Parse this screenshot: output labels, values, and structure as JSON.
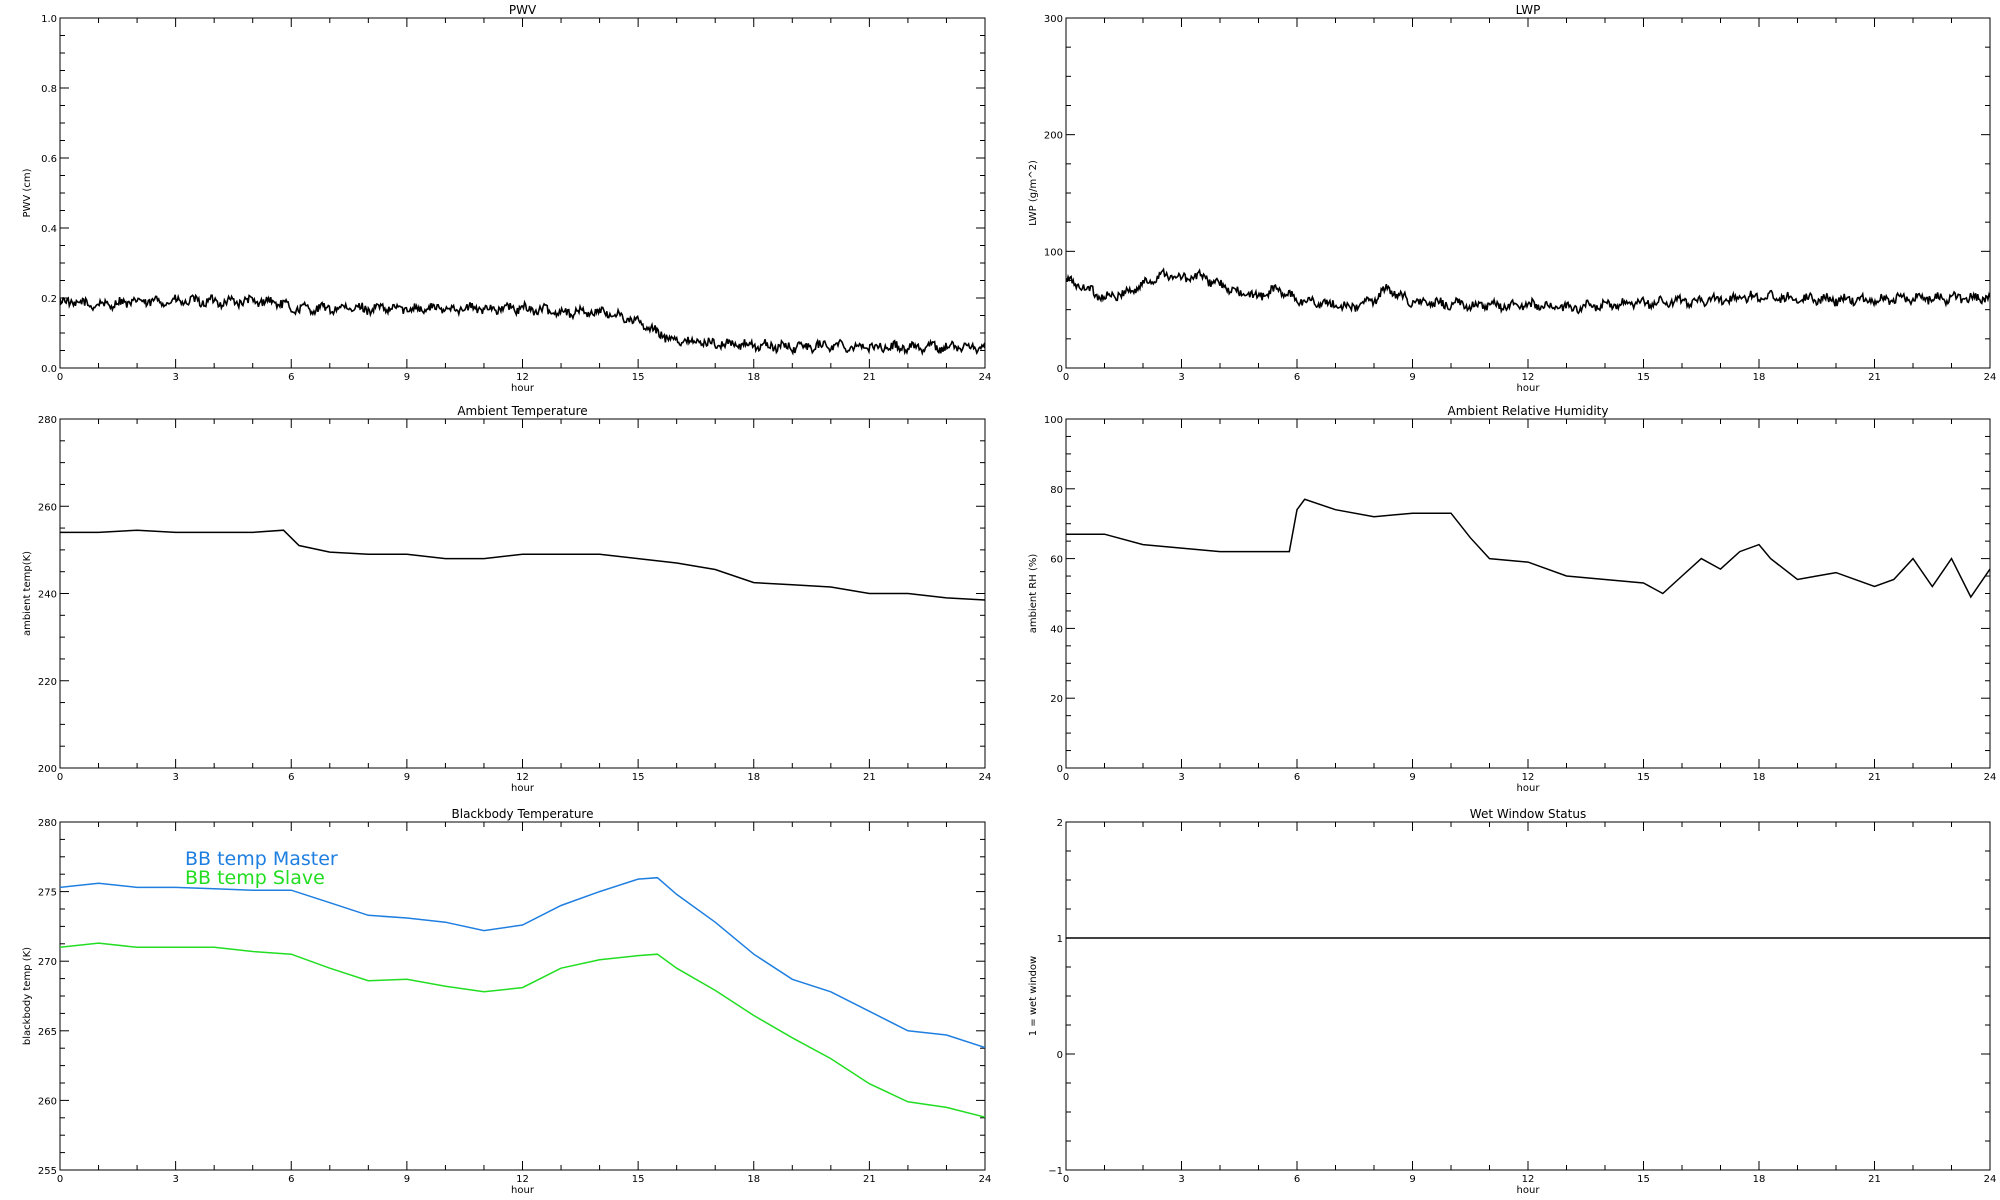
{
  "chart_data": [
    {
      "type": "line",
      "title": "PWV",
      "xlabel": "hour",
      "ylabel": "PWV (cm)",
      "xlim": [
        0,
        24
      ],
      "ylim": [
        0.0,
        1.0
      ],
      "xticks": [
        "0",
        "3",
        "6",
        "9",
        "12",
        "15",
        "18",
        "21",
        "24"
      ],
      "yticks": [
        "0.0",
        "0.2",
        "0.4",
        "0.6",
        "0.8",
        "1.0"
      ],
      "noisy": true,
      "series": [
        {
          "color": "#000000",
          "x": [
            0,
            1,
            2,
            3,
            4,
            5,
            5.6,
            6,
            7,
            8,
            9,
            10,
            11,
            12,
            13,
            14,
            14.5,
            15,
            15.5,
            16,
            17,
            18,
            19,
            20,
            21,
            22,
            23,
            24
          ],
          "y": [
            0.19,
            0.18,
            0.19,
            0.19,
            0.19,
            0.19,
            0.19,
            0.17,
            0.17,
            0.17,
            0.17,
            0.17,
            0.17,
            0.17,
            0.16,
            0.16,
            0.15,
            0.13,
            0.1,
            0.08,
            0.07,
            0.065,
            0.06,
            0.065,
            0.06,
            0.06,
            0.06,
            0.06
          ]
        }
      ]
    },
    {
      "type": "line",
      "title": "LWP",
      "xlabel": "hour",
      "ylabel": "LWP (g/m^2)",
      "xlim": [
        0,
        24
      ],
      "ylim": [
        -50,
        350
      ],
      "xticks": [
        "0",
        "3",
        "6",
        "9",
        "12",
        "15",
        "18",
        "21",
        "24"
      ],
      "yticks": [
        "0",
        "100",
        "200",
        "300"
      ],
      "noisy": true,
      "series": [
        {
          "color": "#000000",
          "x": [
            0,
            0.3,
            0.6,
            1,
            1.5,
            2,
            2.5,
            3,
            3.5,
            4,
            4.5,
            5,
            5.5,
            6,
            7,
            7.5,
            8,
            8.3,
            8.6,
            9,
            10,
            11,
            12,
            13,
            14,
            15,
            16,
            17,
            18,
            19,
            20,
            21,
            22,
            23,
            24
          ],
          "y": [
            50,
            45,
            40,
            30,
            35,
            45,
            58,
            52,
            55,
            45,
            35,
            32,
            40,
            28,
            22,
            20,
            28,
            40,
            35,
            25,
            23,
            21,
            22,
            19,
            21,
            24,
            26,
            28,
            32,
            30,
            28,
            28,
            30,
            30,
            30
          ]
        }
      ]
    },
    {
      "type": "line",
      "title": "Ambient Temperature",
      "xlabel": "hour",
      "ylabel": "ambient temp(K)",
      "xlim": [
        0,
        24
      ],
      "ylim": [
        200,
        280
      ],
      "xticks": [
        "0",
        "3",
        "6",
        "9",
        "12",
        "15",
        "18",
        "21",
        "24"
      ],
      "yticks": [
        "200",
        "220",
        "240",
        "260",
        "280"
      ],
      "noisy": false,
      "series": [
        {
          "color": "#000000",
          "x": [
            0,
            1,
            2,
            3,
            4,
            5,
            5.8,
            6.2,
            7,
            8,
            9,
            10,
            11,
            12,
            13,
            14,
            15,
            16,
            17,
            18,
            19,
            20,
            21,
            22,
            23,
            24
          ],
          "y": [
            254,
            254,
            254.5,
            254,
            254,
            254,
            254.5,
            251,
            249.5,
            249,
            249,
            248,
            248,
            249,
            249,
            249,
            248,
            247,
            245.5,
            242.5,
            242,
            241.5,
            240,
            240,
            239,
            238.5
          ]
        }
      ]
    },
    {
      "type": "line",
      "title": "Ambient Relative Humidity",
      "xlabel": "hour",
      "ylabel": "ambient RH (%)",
      "xlim": [
        0,
        24
      ],
      "ylim": [
        0,
        100
      ],
      "xticks": [
        "0",
        "3",
        "6",
        "9",
        "12",
        "15",
        "18",
        "21",
        "24"
      ],
      "yticks": [
        "0",
        "20",
        "40",
        "60",
        "80",
        "100"
      ],
      "noisy": false,
      "series": [
        {
          "color": "#000000",
          "x": [
            0,
            1,
            2,
            3,
            4,
            5,
            5.8,
            6,
            6.2,
            7,
            8,
            9,
            10,
            10.5,
            11,
            12,
            13,
            14,
            15,
            15.5,
            16,
            16.5,
            17,
            17.5,
            18,
            18.3,
            19,
            19.5,
            20,
            21,
            21.5,
            22,
            22.5,
            23,
            23.5,
            24
          ],
          "y": [
            67,
            67,
            64,
            63,
            62,
            62,
            62,
            74,
            77,
            74,
            72,
            73,
            73,
            66,
            60,
            59,
            55,
            54,
            53,
            50,
            55,
            60,
            57,
            62,
            64,
            60,
            54,
            55,
            56,
            52,
            54,
            60,
            52,
            60,
            49,
            57
          ]
        }
      ]
    },
    {
      "type": "line",
      "title": "Blackbody Temperature",
      "xlabel": "hour",
      "ylabel": "blackbody temp (K)",
      "xlim": [
        0,
        24
      ],
      "ylim": [
        255,
        280
      ],
      "xticks": [
        "0",
        "3",
        "6",
        "9",
        "12",
        "15",
        "18",
        "21",
        "24"
      ],
      "yticks": [
        "255",
        "260",
        "265",
        "270",
        "275",
        "280"
      ],
      "noisy": false,
      "legend": "top-left",
      "series": [
        {
          "name": "BB temp Master",
          "color": "#1f7fe0",
          "x": [
            0,
            1,
            2,
            3,
            4,
            5,
            6,
            7,
            8,
            9,
            10,
            11,
            12,
            13,
            14,
            15,
            15.5,
            16,
            17,
            18,
            19,
            20,
            21,
            22,
            23,
            24
          ],
          "y": [
            275.3,
            275.6,
            275.3,
            275.3,
            275.2,
            275.1,
            275.1,
            274.2,
            273.3,
            273.1,
            272.8,
            272.2,
            272.6,
            274.0,
            275.0,
            275.9,
            276.0,
            274.8,
            272.8,
            270.5,
            268.7,
            267.8,
            266.4,
            265.0,
            264.7,
            263.8
          ]
        },
        {
          "name": "BB temp Slave",
          "color": "#22dd22",
          "x": [
            0,
            1,
            2,
            3,
            4,
            5,
            6,
            7,
            8,
            9,
            10,
            11,
            12,
            13,
            14,
            15,
            15.5,
            16,
            17,
            18,
            19,
            20,
            21,
            22,
            23,
            24
          ],
          "y": [
            271.0,
            271.3,
            271.0,
            271.0,
            271.0,
            270.7,
            270.5,
            269.5,
            268.6,
            268.7,
            268.2,
            267.8,
            268.1,
            269.5,
            270.1,
            270.4,
            270.5,
            269.5,
            267.9,
            266.1,
            264.5,
            263.0,
            261.2,
            259.9,
            259.5,
            258.8
          ]
        }
      ]
    },
    {
      "type": "line",
      "title": "Wet Window Status",
      "xlabel": "hour",
      "ylabel": "1 = wet window",
      "xlim": [
        0,
        24
      ],
      "ylim": [
        -1,
        2
      ],
      "xticks": [
        "0",
        "3",
        "6",
        "9",
        "12",
        "15",
        "18",
        "21",
        "24"
      ],
      "yticks": [
        "−1",
        "0",
        "1",
        "2"
      ],
      "noisy": false,
      "series": [
        {
          "color": "#000000",
          "x": [
            0,
            24
          ],
          "y": [
            1,
            1
          ]
        }
      ]
    }
  ]
}
